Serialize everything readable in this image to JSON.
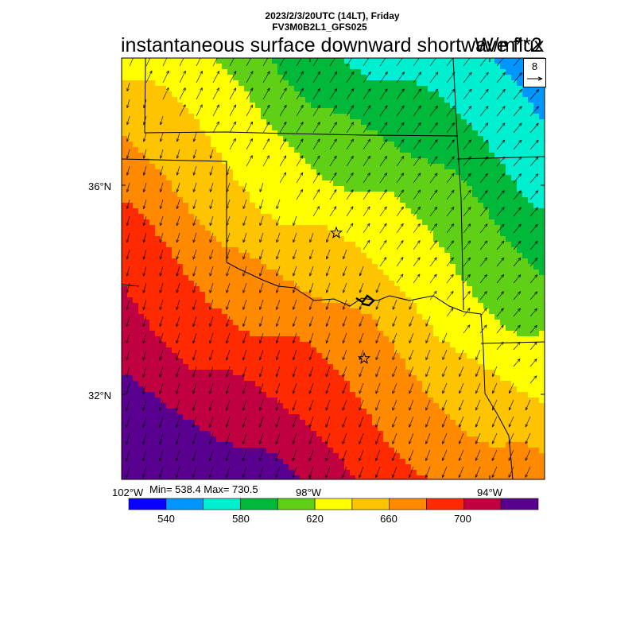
{
  "header": {
    "line1": "2023/2/3/20UTC (14LT), Friday",
    "line2": "FV3M0B2L1_GFS025",
    "title": "instantaneous surface downward shortwave flux",
    "units": "W/m**2"
  },
  "axes": {
    "lat_labels": [
      "36°N",
      "32°N"
    ],
    "lon_labels": [
      "102°W",
      "98°W",
      "94°W"
    ]
  },
  "stats": {
    "text": "Min= 538.4 Max= 730.5",
    "min": 538.4,
    "max": 730.5
  },
  "vector_reference": {
    "label": "8"
  },
  "colorbar": {
    "labels": [
      "540",
      "580",
      "620",
      "660",
      "700"
    ],
    "levels": [
      540,
      560,
      580,
      600,
      620,
      640,
      660,
      680,
      700,
      720
    ],
    "colors": [
      "#0a00ff",
      "#0096ff",
      "#00efd0",
      "#00b93a",
      "#5fd016",
      "#ffff00",
      "#ffc400",
      "#ff8a00",
      "#ff2a00",
      "#c00040",
      "#5a0090"
    ]
  },
  "colors": {
    "state_borders": "#000000",
    "frame": "#000000"
  },
  "markers": {
    "symbol": "star",
    "count": 2
  }
}
